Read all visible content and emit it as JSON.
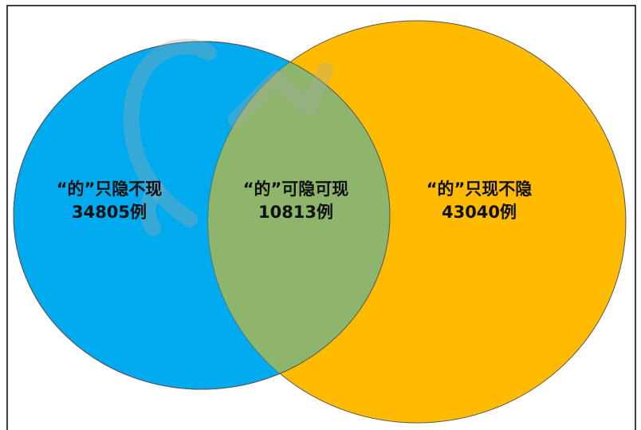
{
  "diagram": {
    "type": "venn",
    "colors": {
      "left_set": "#00aaee",
      "right_set": "#ffbb00",
      "overlap": "#8db56c",
      "outline": "#555555",
      "frame": "#000000"
    },
    "regions": {
      "left_only": {
        "title": "“的”只隐不现",
        "count": "34805例"
      },
      "both": {
        "title": "“的”可隐可现",
        "count": "10813例"
      },
      "right_only": {
        "title": "“的”只现不隐",
        "count": "43040例"
      }
    },
    "watermark": {
      "text": "CL"
    }
  }
}
